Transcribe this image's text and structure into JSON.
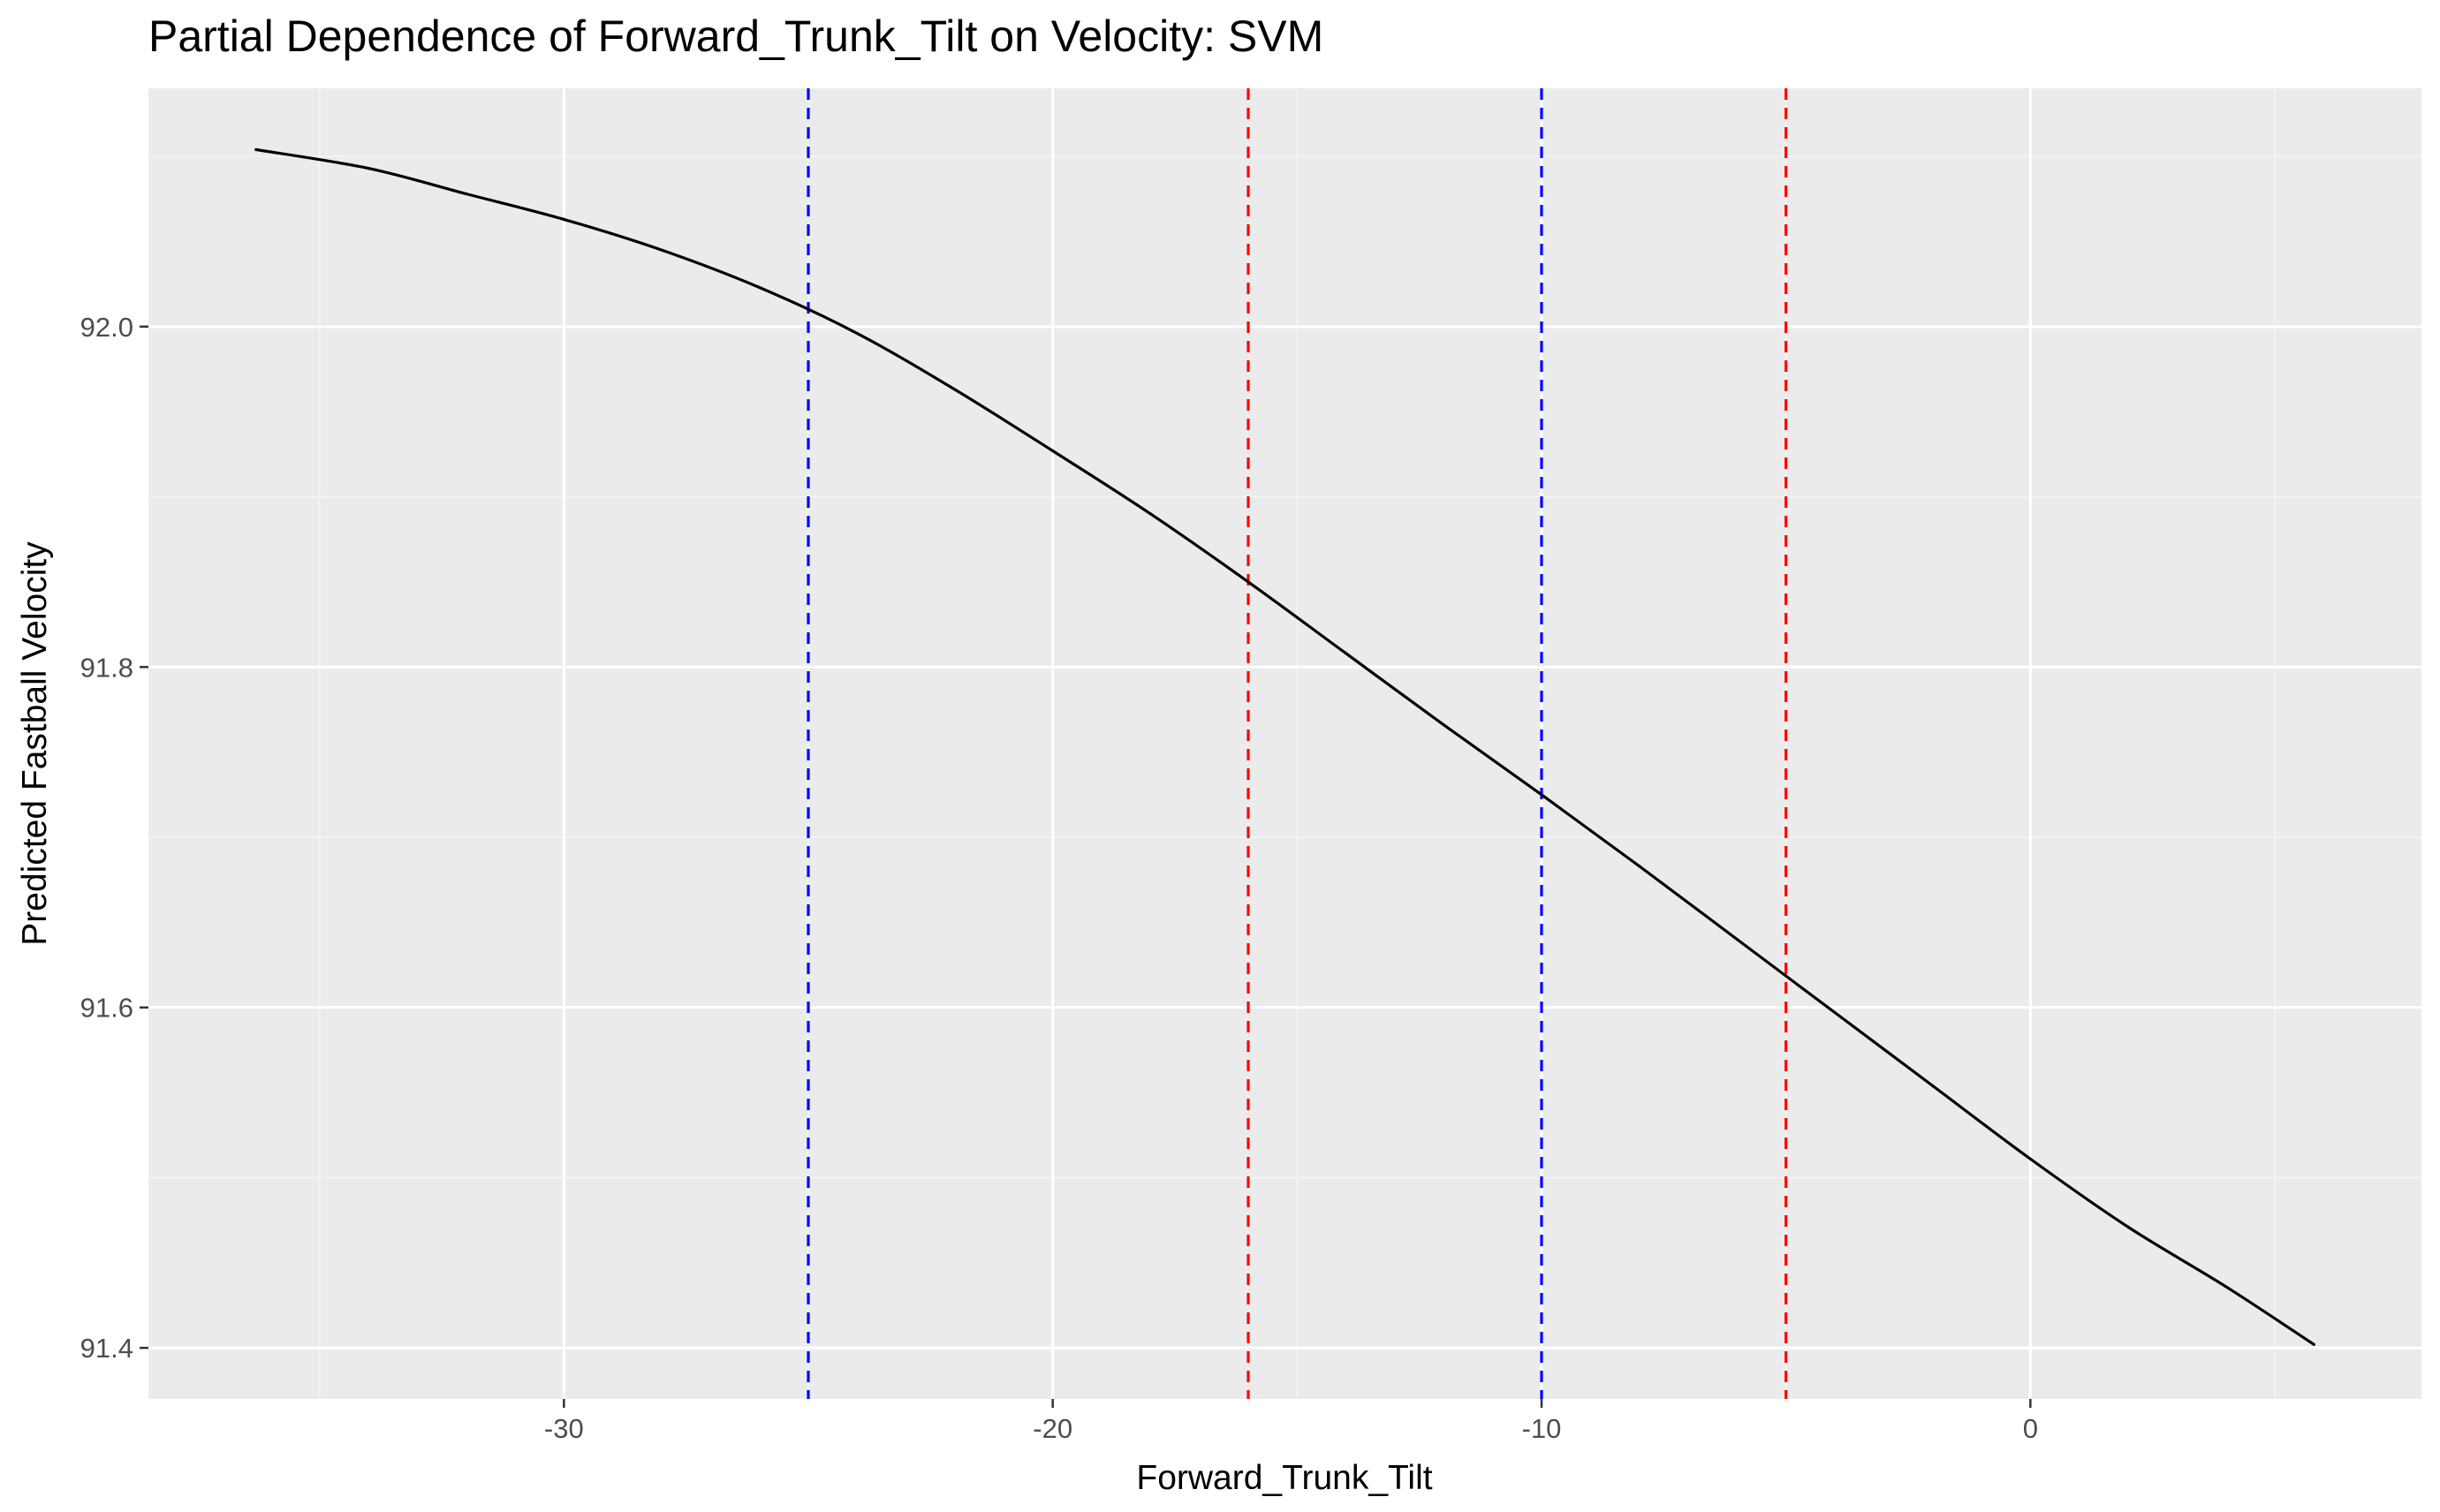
{
  "chart_data": {
    "type": "line",
    "title": "Partial Dependence of Forward_Trunk_Tilt on Velocity: SVM",
    "xlabel": "Forward_Trunk_Tilt",
    "ylabel": "Predicted Fastball Velocity",
    "xlim": [
      -38.5,
      8
    ],
    "ylim": [
      91.37,
      92.14
    ],
    "x_ticks": [
      -30,
      -20,
      -10,
      0
    ],
    "x_tick_labels": [
      "-30",
      "-20",
      "-10",
      "0"
    ],
    "x_minor_ticks": [
      -35,
      -25,
      -15,
      -5,
      5
    ],
    "y_ticks": [
      91.4,
      91.6,
      91.8,
      92.0
    ],
    "y_tick_labels": [
      "91.4",
      "91.6",
      "91.8",
      "92.0"
    ],
    "y_minor_ticks": [
      91.5,
      91.7,
      91.9,
      92.1
    ],
    "grid": true,
    "series": [
      {
        "color": "#000000",
        "x": [
          -36.3,
          -34,
          -32,
          -30,
          -28,
          -26,
          -24,
          -22,
          -20,
          -18,
          -16,
          -14,
          -12,
          -10,
          -8,
          -6,
          -4,
          -2,
          0,
          2,
          4,
          5.8
        ],
        "y": [
          92.104,
          92.093,
          92.078,
          92.063,
          92.045,
          92.023,
          91.996,
          91.963,
          91.927,
          91.89,
          91.85,
          91.808,
          91.766,
          91.725,
          91.683,
          91.64,
          91.597,
          91.554,
          91.511,
          91.471,
          91.436,
          91.402
        ]
      }
    ],
    "reference_lines": [
      {
        "x": -25,
        "color": "#0000ff",
        "style": "dashed"
      },
      {
        "x": -16,
        "color": "#ff0000",
        "style": "dashed"
      },
      {
        "x": -10,
        "color": "#0000ff",
        "style": "dashed"
      },
      {
        "x": -5,
        "color": "#ff0000",
        "style": "dashed"
      }
    ],
    "colors": {
      "panel_background": "#ebebeb",
      "grid_major": "#ffffff",
      "grid_minor": "#f5f5f5",
      "tick_mark": "#333333",
      "tick_label": "#4d4d4d"
    }
  }
}
